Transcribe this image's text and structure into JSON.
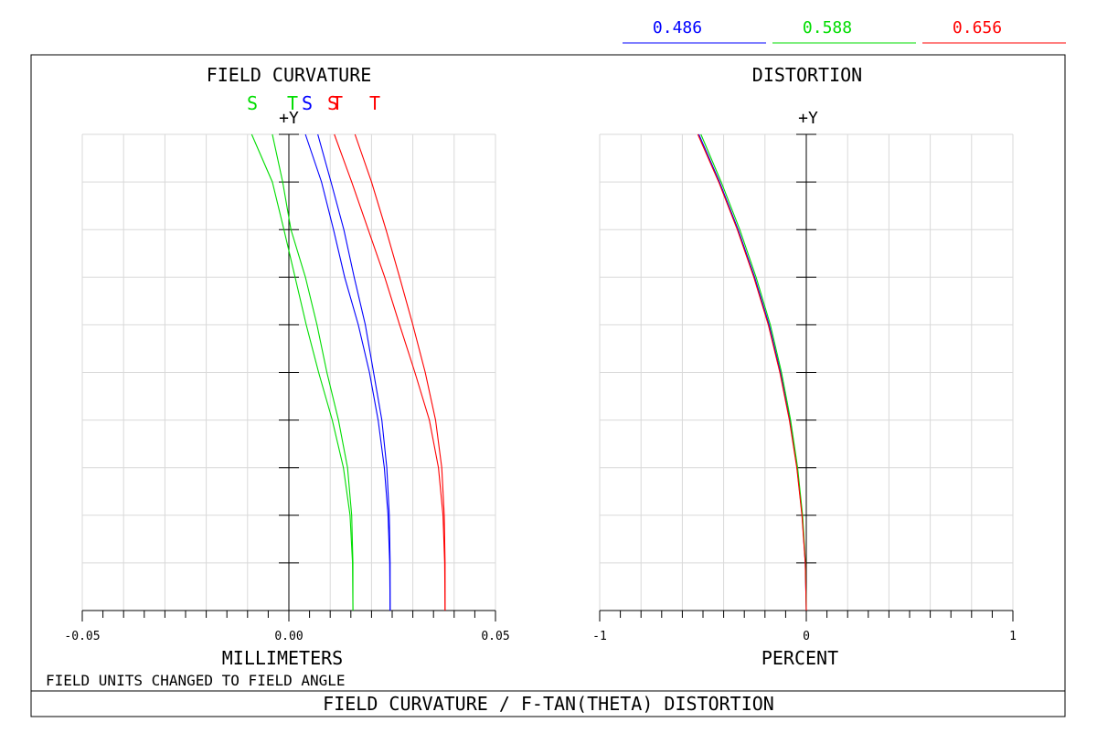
{
  "legend": {
    "wavelengths": [
      {
        "label": "0.486",
        "color": "#0000ff"
      },
      {
        "label": "0.588",
        "color": "#00dd00"
      },
      {
        "label": "0.656",
        "color": "#ff0000"
      }
    ]
  },
  "footer": {
    "field_note": "FIELD UNITS CHANGED TO FIELD ANGLE",
    "title": "FIELD CURVATURE / F-TAN(THETA) DISTORTION"
  },
  "chart_data": [
    {
      "type": "line",
      "title": "FIELD CURVATURE",
      "xlabel": "MILLIMETERS",
      "ylabel": "+Y",
      "xlim": [
        -0.05,
        0.05
      ],
      "ylim": [
        0,
        1
      ],
      "xticks": [
        "-0.05",
        "0.00",
        "0.05"
      ],
      "grid": true,
      "surface_labels": [
        {
          "text": "S",
          "color": "#00dd00"
        },
        {
          "text": "T",
          "color": "#00dd00"
        },
        {
          "text": "S",
          "color": "#0000ff"
        },
        {
          "text": "S",
          "color": "#ff0000"
        },
        {
          "text": "T",
          "color": "#ff0000"
        },
        {
          "text": "T",
          "color": "#ff0000"
        }
      ],
      "y": [
        0,
        0.1,
        0.2,
        0.3,
        0.4,
        0.5,
        0.6,
        0.7,
        0.8,
        0.9,
        1.0
      ],
      "series": [
        {
          "name": "0.486 S",
          "color": "#0000ff",
          "x": [
            0.0245,
            0.0244,
            0.024,
            0.0231,
            0.0216,
            0.0195,
            0.0168,
            0.0135,
            0.0108,
            0.0079,
            0.004
          ]
        },
        {
          "name": "0.486 T",
          "color": "#0000ff",
          "x": [
            0.0245,
            0.0245,
            0.0243,
            0.0237,
            0.0225,
            0.0205,
            0.0185,
            0.0158,
            0.0133,
            0.0102,
            0.007
          ]
        },
        {
          "name": "0.588 S",
          "color": "#00dd00",
          "x": [
            0.0155,
            0.0154,
            0.0148,
            0.0132,
            0.0105,
            0.0072,
            0.0042,
            0.0015,
            -0.0012,
            -0.004,
            -0.009
          ]
        },
        {
          "name": "0.588 T",
          "color": "#00dd00",
          "x": [
            0.0155,
            0.0155,
            0.0152,
            0.0142,
            0.012,
            0.0092,
            0.0068,
            0.004,
            0.0005,
            -0.0015,
            -0.004
          ]
        },
        {
          "name": "0.656 S",
          "color": "#ff0000",
          "x": [
            0.0378,
            0.0377,
            0.0373,
            0.0362,
            0.034,
            0.0305,
            0.0268,
            0.0232,
            0.0192,
            0.0152,
            0.011
          ]
        },
        {
          "name": "0.656 T",
          "color": "#ff0000",
          "x": [
            0.0378,
            0.0378,
            0.0376,
            0.037,
            0.0355,
            0.033,
            0.03,
            0.0268,
            0.0235,
            0.02,
            0.016
          ]
        }
      ]
    },
    {
      "type": "line",
      "title": "DISTORTION",
      "xlabel": "PERCENT",
      "ylabel": "+Y",
      "xlim": [
        -1,
        1
      ],
      "ylim": [
        0,
        1
      ],
      "xticks": [
        "-1",
        "0",
        "1"
      ],
      "grid": true,
      "y": [
        0,
        0.1,
        0.2,
        0.3,
        0.4,
        0.5,
        0.6,
        0.7,
        0.8,
        0.9,
        1.0
      ],
      "series": [
        {
          "name": "0.486",
          "color": "#0000ff",
          "x": [
            0,
            -0.005,
            -0.02,
            -0.045,
            -0.08,
            -0.125,
            -0.18,
            -0.25,
            -0.33,
            -0.42,
            -0.52
          ]
        },
        {
          "name": "0.588",
          "color": "#00dd00",
          "x": [
            0,
            -0.004,
            -0.018,
            -0.042,
            -0.076,
            -0.12,
            -0.174,
            -0.243,
            -0.322,
            -0.412,
            -0.51
          ]
        },
        {
          "name": "0.656",
          "color": "#ff0000",
          "x": [
            0,
            -0.005,
            -0.021,
            -0.046,
            -0.082,
            -0.128,
            -0.184,
            -0.254,
            -0.334,
            -0.424,
            -0.525
          ]
        }
      ]
    }
  ]
}
